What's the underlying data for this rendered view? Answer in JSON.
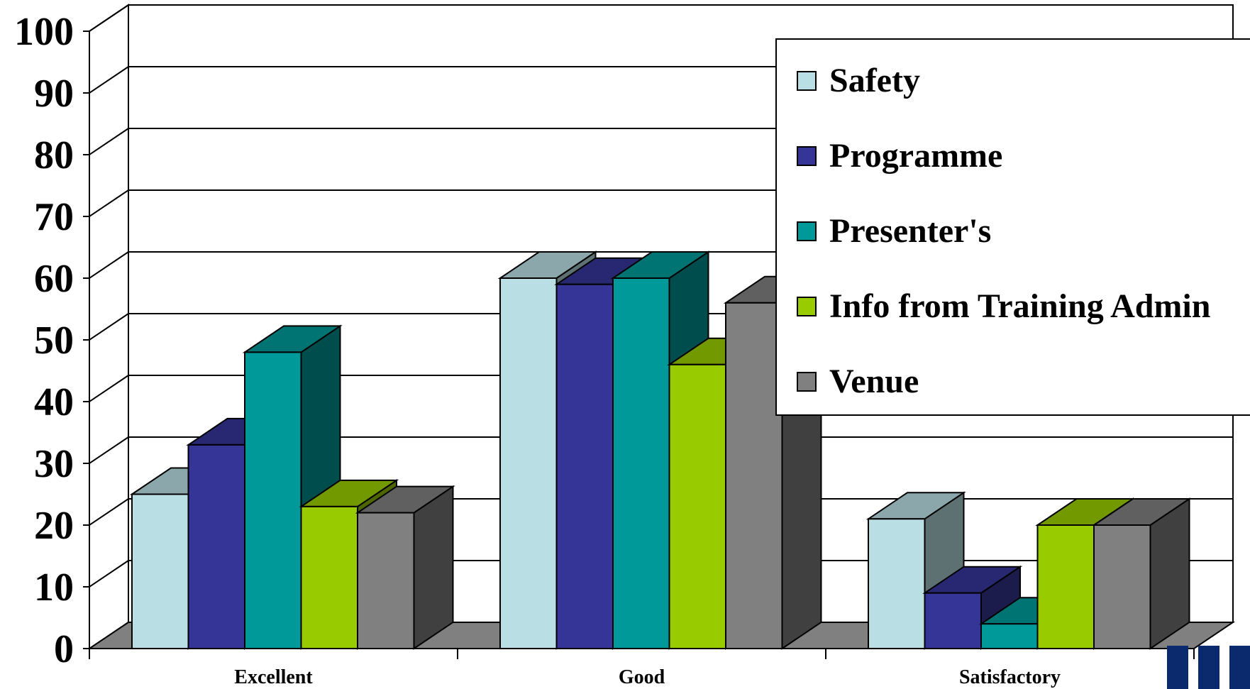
{
  "chart_data": {
    "type": "bar",
    "categories": [
      "Excellent",
      "Good",
      "Satisfactory"
    ],
    "series": [
      {
        "name": "Safety",
        "values": [
          25,
          60,
          21
        ],
        "color": "#b9dfe4"
      },
      {
        "name": "Programme",
        "values": [
          33,
          59,
          9
        ],
        "color": "#353598"
      },
      {
        "name": "Presenter's",
        "values": [
          48,
          60,
          4
        ],
        "color": "#009999"
      },
      {
        "name": "Info from Training Admin",
        "values": [
          23,
          46,
          20
        ],
        "color": "#99cc00"
      },
      {
        "name": "Venue",
        "values": [
          22,
          56,
          20
        ],
        "color": "#808080"
      }
    ],
    "ylim": [
      0,
      100
    ],
    "yticks": [
      0,
      10,
      20,
      30,
      40,
      50,
      60,
      70,
      80,
      90,
      100
    ],
    "grid": true,
    "style": "3d-clustered-column",
    "legend_position": "top-right",
    "title": "",
    "xlabel": "",
    "ylabel": ""
  }
}
